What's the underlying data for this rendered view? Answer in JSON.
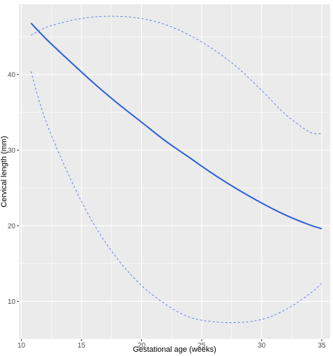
{
  "chart_data": {
    "type": "line",
    "xlabel": "Gestational age (weeks)",
    "ylabel": "Cervical length (mm)",
    "xlim": [
      9.8,
      35.7
    ],
    "ylim": [
      5.0,
      49.3
    ],
    "x_ticks": [
      10,
      15,
      20,
      25,
      30,
      35
    ],
    "x_tick_labels": [
      "10",
      "15",
      "20",
      "25",
      "30",
      "35"
    ],
    "y_ticks": [
      10,
      20,
      30,
      40
    ],
    "y_tick_labels": [
      "10",
      "20",
      "30",
      "40"
    ],
    "grid": true,
    "background": "#ebebeb",
    "grid_color": "#ffffff",
    "series": [
      {
        "style": "solid",
        "color": "#2b5fd9",
        "x": [
          10.8,
          12,
          14,
          16,
          18,
          20,
          22,
          24,
          26,
          28,
          30,
          32,
          34,
          35
        ],
        "y": [
          46.8,
          44.8,
          41.8,
          38.9,
          36.2,
          33.7,
          31.2,
          29.0,
          26.8,
          24.8,
          23.0,
          21.4,
          20.1,
          19.6
        ]
      },
      {
        "style": "dashed",
        "color": "#5b82e0",
        "x": [
          10.8,
          12,
          14,
          16,
          18,
          20,
          22,
          24,
          26,
          28,
          30,
          32,
          34,
          35
        ],
        "y": [
          45.2,
          46.2,
          47.1,
          47.6,
          47.7,
          47.4,
          46.6,
          45.2,
          43.3,
          40.9,
          37.9,
          34.7,
          32.4,
          32.2
        ]
      },
      {
        "style": "dashed",
        "color": "#5b82e0",
        "x": [
          10.8,
          12,
          14,
          16,
          18,
          20,
          22,
          24,
          26,
          28,
          30,
          32,
          34,
          35
        ],
        "y": [
          40.4,
          34.0,
          26.5,
          20.3,
          15.6,
          12.1,
          9.6,
          7.9,
          7.3,
          7.2,
          7.6,
          8.9,
          11.0,
          12.4
        ]
      }
    ]
  }
}
